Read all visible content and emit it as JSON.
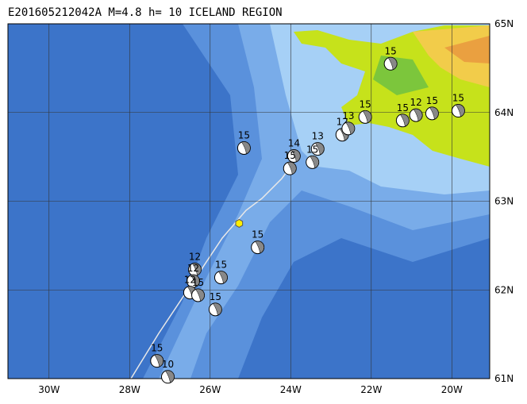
{
  "title": "E201605212042A M=4.8 h= 10 ICELAND REGION",
  "lon_range": [
    -31.02,
    -19.06
  ],
  "lat_range": [
    61,
    65
  ],
  "lon_ticks": [
    {
      "value": -30,
      "label": "30W"
    },
    {
      "value": -28,
      "label": "28W"
    },
    {
      "value": -26,
      "label": "26W"
    },
    {
      "value": -24,
      "label": "24W"
    },
    {
      "value": -22,
      "label": "22W"
    },
    {
      "value": -20,
      "label": "20W"
    }
  ],
  "lat_ticks": [
    {
      "value": 65,
      "label": "65N"
    },
    {
      "value": 64,
      "label": "64N"
    },
    {
      "value": 63,
      "label": "63N"
    },
    {
      "value": 62,
      "label": "62N"
    },
    {
      "value": 61,
      "label": "61N"
    }
  ],
  "epicenter": {
    "lon": -25.28,
    "lat": 62.75
  },
  "events": [
    {
      "lon": -21.52,
      "lat": 64.55,
      "depth": "15"
    },
    {
      "lon": -22.15,
      "lat": 63.95,
      "depth": "15"
    },
    {
      "lon": -21.22,
      "lat": 63.91,
      "depth": "15"
    },
    {
      "lon": -20.89,
      "lat": 63.97,
      "depth": "12"
    },
    {
      "lon": -20.49,
      "lat": 63.99,
      "depth": "15"
    },
    {
      "lon": -19.84,
      "lat": 64.02,
      "depth": "15"
    },
    {
      "lon": -22.72,
      "lat": 63.75,
      "depth": "12"
    },
    {
      "lon": -22.57,
      "lat": 63.82,
      "depth": "13"
    },
    {
      "lon": -23.33,
      "lat": 63.59,
      "depth": "13"
    },
    {
      "lon": -23.46,
      "lat": 63.44,
      "depth": "15"
    },
    {
      "lon": -23.92,
      "lat": 63.51,
      "depth": "14"
    },
    {
      "lon": -24.02,
      "lat": 63.37,
      "depth": "15"
    },
    {
      "lon": -25.16,
      "lat": 63.6,
      "depth": "15"
    },
    {
      "lon": -24.82,
      "lat": 62.48,
      "depth": "15"
    },
    {
      "lon": -26.38,
      "lat": 62.23,
      "depth": "12"
    },
    {
      "lon": -26.42,
      "lat": 62.1,
      "depth": "12"
    },
    {
      "lon": -25.73,
      "lat": 62.14,
      "depth": "15"
    },
    {
      "lon": -26.5,
      "lat": 61.97,
      "depth": "12"
    },
    {
      "lon": -26.3,
      "lat": 61.94,
      "depth": "15"
    },
    {
      "lon": -25.87,
      "lat": 61.78,
      "depth": "15"
    },
    {
      "lon": -27.32,
      "lat": 61.2,
      "depth": "15"
    },
    {
      "lon": -27.05,
      "lat": 61.02,
      "depth": "10"
    }
  ]
}
